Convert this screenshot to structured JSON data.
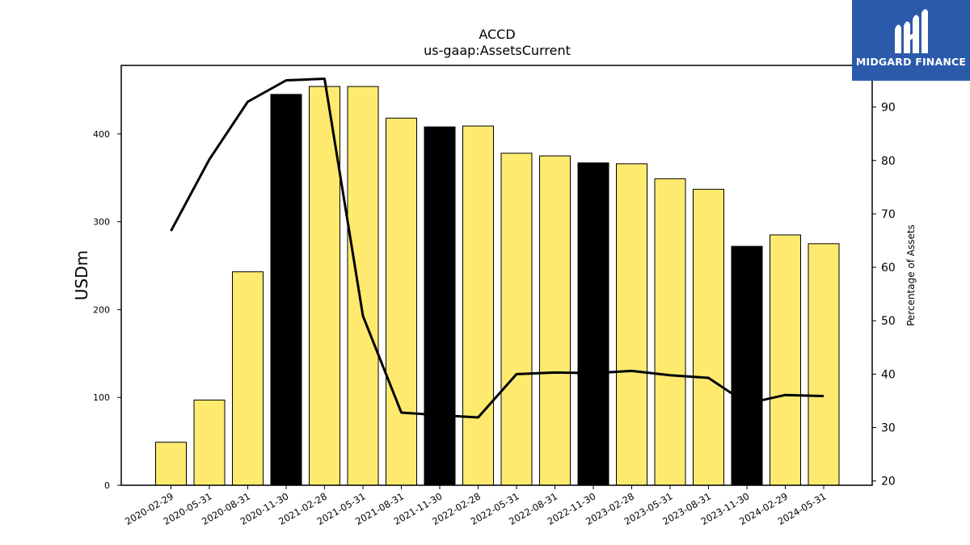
{
  "chart_data": {
    "type": "bar",
    "title": "ACCD",
    "subtitle": "us-gaap:AssetsCurrent",
    "ylabel": "USDm",
    "y2label": "Percentage of Assets",
    "ylim": [
      0,
      478
    ],
    "y2lim": [
      19.2,
      97.8
    ],
    "yticks": [
      0,
      100,
      200,
      300,
      400
    ],
    "y2ticks": [
      20,
      30,
      40,
      50,
      60,
      70,
      80,
      90
    ],
    "categories": [
      "2020-02-29",
      "2020-05-31",
      "2020-08-31",
      "2020-11-30",
      "2021-02-28",
      "2021-05-31",
      "2021-08-31",
      "2021-11-30",
      "2022-02-28",
      "2022-05-31",
      "2022-08-31",
      "2022-11-30",
      "2023-02-28",
      "2023-05-31",
      "2023-08-31",
      "2023-11-30",
      "2024-02-29",
      "2024-05-31"
    ],
    "series": [
      {
        "axis": "left",
        "kind": "bar",
        "values": [
          49,
          97,
          243,
          445,
          454,
          454,
          418,
          408,
          409,
          378,
          375,
          367,
          366,
          349,
          337,
          272,
          285,
          275
        ],
        "highlight": [
          false,
          false,
          false,
          true,
          false,
          false,
          false,
          true,
          false,
          false,
          false,
          true,
          false,
          false,
          false,
          true,
          false,
          false
        ]
      },
      {
        "axis": "right",
        "kind": "line",
        "values": [
          66.8,
          80.2,
          91.0,
          95.0,
          95.3,
          50.9,
          32.8,
          32.3,
          31.9,
          40.0,
          40.3,
          40.2,
          40.6,
          39.8,
          39.3,
          34.5,
          36.1,
          35.9
        ]
      }
    ],
    "colors": {
      "bar": "#fdea6f",
      "bar_highlight": "#000000",
      "bar_edge": "#000000",
      "line": "#000000"
    },
    "grid": false
  },
  "logo": {
    "name": "MIDGARD FINANCE",
    "background": "#2b5aab",
    "icon": "midgard-logo-icon"
  }
}
